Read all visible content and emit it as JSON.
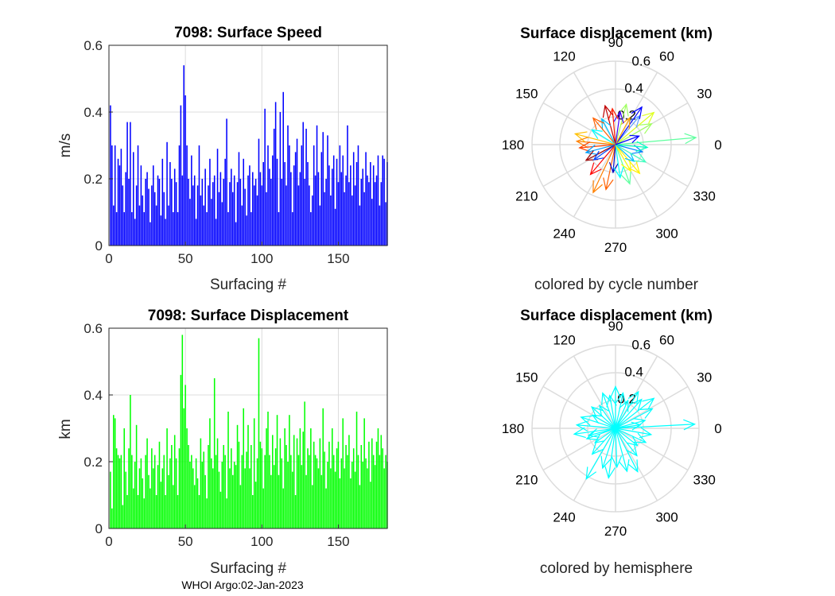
{
  "footer": "WHOI Argo:02-Jan-2023",
  "colors": {
    "speed_bar": "#0000ff",
    "disp_bar": "#00ff00",
    "hemisphere_arrow": "#00ffff",
    "grid": "#dcdcdc",
    "axis": "#262626"
  },
  "chart_data": [
    {
      "type": "bar",
      "title": "7098: Surface Speed",
      "xlabel": "Surfacing #",
      "ylabel": "m/s",
      "xlim": [
        0,
        182
      ],
      "ylim": [
        0,
        0.6
      ],
      "xticks": [
        "0",
        "50",
        "100",
        "150"
      ],
      "yticks": [
        "0",
        "0.2",
        "0.4",
        "0.6"
      ],
      "bar_color": "#0000ff",
      "values": [
        0.42,
        0.3,
        0.12,
        0.3,
        0.1,
        0.26,
        0.24,
        0.29,
        0.18,
        0.1,
        0.22,
        0.37,
        0.2,
        0.37,
        0.1,
        0.28,
        0.08,
        0.18,
        0.3,
        0.12,
        0.24,
        0.15,
        0.1,
        0.2,
        0.22,
        0.17,
        0.07,
        0.18,
        0.24,
        0.16,
        0.12,
        0.21,
        0.2,
        0.09,
        0.26,
        0.16,
        0.08,
        0.31,
        0.12,
        0.25,
        0.2,
        0.1,
        0.23,
        0.19,
        0.1,
        0.3,
        0.42,
        0.21,
        0.54,
        0.45,
        0.3,
        0.2,
        0.14,
        0.27,
        0.18,
        0.21,
        0.08,
        0.18,
        0.3,
        0.15,
        0.2,
        0.12,
        0.23,
        0.1,
        0.18,
        0.26,
        0.14,
        0.19,
        0.21,
        0.08,
        0.29,
        0.16,
        0.22,
        0.13,
        0.2,
        0.26,
        0.38,
        0.1,
        0.19,
        0.23,
        0.16,
        0.21,
        0.07,
        0.19,
        0.28,
        0.2,
        0.12,
        0.26,
        0.17,
        0.09,
        0.21,
        0.24,
        0.1,
        0.22,
        0.18,
        0.2,
        0.15,
        0.32,
        0.22,
        0.18,
        0.25,
        0.41,
        0.16,
        0.3,
        0.23,
        0.2,
        0.27,
        0.35,
        0.43,
        0.26,
        0.1,
        0.4,
        0.2,
        0.46,
        0.25,
        0.18,
        0.36,
        0.3,
        0.22,
        0.1,
        0.24,
        0.28,
        0.32,
        0.18,
        0.22,
        0.3,
        0.37,
        0.2,
        0.35,
        0.25,
        0.18,
        0.1,
        0.15,
        0.3,
        0.21,
        0.36,
        0.22,
        0.12,
        0.28,
        0.34,
        0.16,
        0.2,
        0.33,
        0.24,
        0.15,
        0.23,
        0.27,
        0.11,
        0.26,
        0.19,
        0.3,
        0.22,
        0.27,
        0.16,
        0.21,
        0.36,
        0.19,
        0.24,
        0.15,
        0.28,
        0.18,
        0.25,
        0.3,
        0.12,
        0.2,
        0.23,
        0.16,
        0.28,
        0.21,
        0.19,
        0.25,
        0.14,
        0.24,
        0.19,
        0.21,
        0.27,
        0.12,
        0.19,
        0.27,
        0.26,
        0.13,
        0.25
      ]
    },
    {
      "type": "polar-quiver",
      "title": "Surface displacement (km)",
      "caption": "colored by cycle number",
      "angle_labels": [
        "0",
        "30",
        "60",
        "90",
        "120",
        "150",
        "180",
        "210",
        "240",
        "270",
        "300",
        "330"
      ],
      "radial_labels": [
        "0.2",
        "0.4",
        "0.6"
      ],
      "rmax": 0.6,
      "arrows": [
        {
          "angle": 5,
          "r": 0.58,
          "color": "#5fff9f"
        },
        {
          "angle": 30,
          "r": 0.3,
          "color": "#9fff5f"
        },
        {
          "angle": 40,
          "r": 0.36,
          "color": "#dfff20"
        },
        {
          "angle": 50,
          "r": 0.27,
          "color": "#60a0ff"
        },
        {
          "angle": 55,
          "r": 0.33,
          "color": "#0000ff"
        },
        {
          "angle": 62,
          "r": 0.22,
          "color": "#ffa000"
        },
        {
          "angle": 75,
          "r": 0.3,
          "color": "#9fff5f"
        },
        {
          "angle": 82,
          "r": 0.24,
          "color": "#4000ff"
        },
        {
          "angle": 95,
          "r": 0.26,
          "color": "#ff2000"
        },
        {
          "angle": 105,
          "r": 0.29,
          "color": "#c00000"
        },
        {
          "angle": 118,
          "r": 0.21,
          "color": "#00c0ff"
        },
        {
          "angle": 130,
          "r": 0.25,
          "color": "#ff6000"
        },
        {
          "angle": 148,
          "r": 0.2,
          "color": "#00ffff"
        },
        {
          "angle": 165,
          "r": 0.3,
          "color": "#ffc000"
        },
        {
          "angle": 175,
          "r": 0.28,
          "color": "#ff8000"
        },
        {
          "angle": 185,
          "r": 0.26,
          "color": "#ff4000"
        },
        {
          "angle": 195,
          "r": 0.22,
          "color": "#00a0ff"
        },
        {
          "angle": 208,
          "r": 0.24,
          "color": "#a00000"
        },
        {
          "angle": 215,
          "r": 0.19,
          "color": "#0040ff"
        },
        {
          "angle": 230,
          "r": 0.28,
          "color": "#ff0000"
        },
        {
          "angle": 245,
          "r": 0.38,
          "color": "#ff8000"
        },
        {
          "angle": 258,
          "r": 0.33,
          "color": "#ff6000"
        },
        {
          "angle": 265,
          "r": 0.2,
          "color": "#0000c0"
        },
        {
          "angle": 278,
          "r": 0.24,
          "color": "#00ffff"
        },
        {
          "angle": 290,
          "r": 0.3,
          "color": "#60ffa0"
        },
        {
          "angle": 300,
          "r": 0.22,
          "color": "#ffff00"
        },
        {
          "angle": 310,
          "r": 0.27,
          "color": "#ffef00"
        },
        {
          "angle": 318,
          "r": 0.18,
          "color": "#00c0ff"
        },
        {
          "angle": 330,
          "r": 0.25,
          "color": "#40ffc0"
        },
        {
          "angle": 345,
          "r": 0.2,
          "color": "#0080ff"
        },
        {
          "angle": 355,
          "r": 0.23,
          "color": "#00ffc0"
        },
        {
          "angle": 20,
          "r": 0.18,
          "color": "#0000ff"
        }
      ]
    },
    {
      "type": "bar",
      "title": "7098: Surface Displacement",
      "xlabel": "Surfacing #",
      "ylabel": "km",
      "xlim": [
        0,
        182
      ],
      "ylim": [
        0,
        0.6
      ],
      "xticks": [
        "0",
        "50",
        "100",
        "150"
      ],
      "yticks": [
        "0",
        "0.2",
        "0.4",
        "0.6"
      ],
      "bar_color": "#00ff00",
      "values": [
        0.17,
        0.06,
        0.34,
        0.33,
        0.24,
        0.22,
        0.21,
        0.22,
        0.07,
        0.3,
        0.17,
        0.1,
        0.24,
        0.4,
        0.22,
        0.12,
        0.2,
        0.31,
        0.1,
        0.18,
        0.21,
        0.15,
        0.09,
        0.22,
        0.27,
        0.16,
        0.12,
        0.24,
        0.18,
        0.22,
        0.1,
        0.19,
        0.26,
        0.14,
        0.18,
        0.22,
        0.1,
        0.3,
        0.16,
        0.21,
        0.25,
        0.13,
        0.28,
        0.21,
        0.1,
        0.24,
        0.46,
        0.58,
        0.36,
        0.43,
        0.3,
        0.25,
        0.2,
        0.22,
        0.18,
        0.13,
        0.21,
        0.15,
        0.1,
        0.27,
        0.2,
        0.23,
        0.16,
        0.09,
        0.25,
        0.33,
        0.21,
        0.18,
        0.45,
        0.22,
        0.27,
        0.17,
        0.11,
        0.2,
        0.25,
        0.22,
        0.09,
        0.35,
        0.18,
        0.24,
        0.16,
        0.2,
        0.19,
        0.31,
        0.26,
        0.13,
        0.22,
        0.36,
        0.18,
        0.23,
        0.31,
        0.18,
        0.25,
        0.1,
        0.33,
        0.14,
        0.21,
        0.57,
        0.26,
        0.24,
        0.12,
        0.22,
        0.3,
        0.35,
        0.22,
        0.16,
        0.28,
        0.19,
        0.24,
        0.34,
        0.16,
        0.27,
        0.21,
        0.12,
        0.3,
        0.25,
        0.2,
        0.34,
        0.22,
        0.17,
        0.28,
        0.1,
        0.27,
        0.22,
        0.3,
        0.19,
        0.29,
        0.38,
        0.16,
        0.24,
        0.22,
        0.3,
        0.13,
        0.26,
        0.22,
        0.21,
        0.18,
        0.27,
        0.16,
        0.36,
        0.23,
        0.12,
        0.2,
        0.26,
        0.18,
        0.3,
        0.22,
        0.17,
        0.24,
        0.26,
        0.15,
        0.21,
        0.33,
        0.18,
        0.25,
        0.22,
        0.28,
        0.15,
        0.2,
        0.24,
        0.17,
        0.35,
        0.22,
        0.13,
        0.25,
        0.2,
        0.33,
        0.21,
        0.18,
        0.26,
        0.14,
        0.27,
        0.22,
        0.19,
        0.26,
        0.3,
        0.22,
        0.28,
        0.24,
        0.18,
        0.22,
        0.2
      ]
    },
    {
      "type": "polar-quiver",
      "title": "Surface displacement (km)",
      "caption": "colored by hemisphere",
      "angle_labels": [
        "0",
        "30",
        "60",
        "90",
        "120",
        "150",
        "180",
        "210",
        "240",
        "270",
        "300",
        "330"
      ],
      "radial_labels": [
        "0.2",
        "0.4",
        "0.6"
      ],
      "rmax": 0.6,
      "arrow_color": "#00ffff",
      "arrows": [
        {
          "angle": 3,
          "r": 0.57
        },
        {
          "angle": 15,
          "r": 0.22
        },
        {
          "angle": 28,
          "r": 0.3
        },
        {
          "angle": 38,
          "r": 0.35
        },
        {
          "angle": 48,
          "r": 0.28
        },
        {
          "angle": 58,
          "r": 0.31
        },
        {
          "angle": 66,
          "r": 0.22
        },
        {
          "angle": 78,
          "r": 0.26
        },
        {
          "angle": 90,
          "r": 0.3
        },
        {
          "angle": 100,
          "r": 0.24
        },
        {
          "angle": 110,
          "r": 0.27
        },
        {
          "angle": 125,
          "r": 0.2
        },
        {
          "angle": 138,
          "r": 0.23
        },
        {
          "angle": 150,
          "r": 0.19
        },
        {
          "angle": 162,
          "r": 0.26
        },
        {
          "angle": 175,
          "r": 0.28
        },
        {
          "angle": 188,
          "r": 0.3
        },
        {
          "angle": 200,
          "r": 0.22
        },
        {
          "angle": 215,
          "r": 0.18
        },
        {
          "angle": 228,
          "r": 0.25
        },
        {
          "angle": 240,
          "r": 0.42
        },
        {
          "angle": 252,
          "r": 0.3
        },
        {
          "angle": 262,
          "r": 0.36
        },
        {
          "angle": 272,
          "r": 0.28
        },
        {
          "angle": 285,
          "r": 0.32
        },
        {
          "angle": 297,
          "r": 0.35
        },
        {
          "angle": 308,
          "r": 0.25
        },
        {
          "angle": 322,
          "r": 0.2
        },
        {
          "angle": 335,
          "r": 0.24
        },
        {
          "angle": 350,
          "r": 0.26
        },
        {
          "angle": 8,
          "r": 0.18
        },
        {
          "angle": 195,
          "r": 0.2
        }
      ]
    }
  ]
}
